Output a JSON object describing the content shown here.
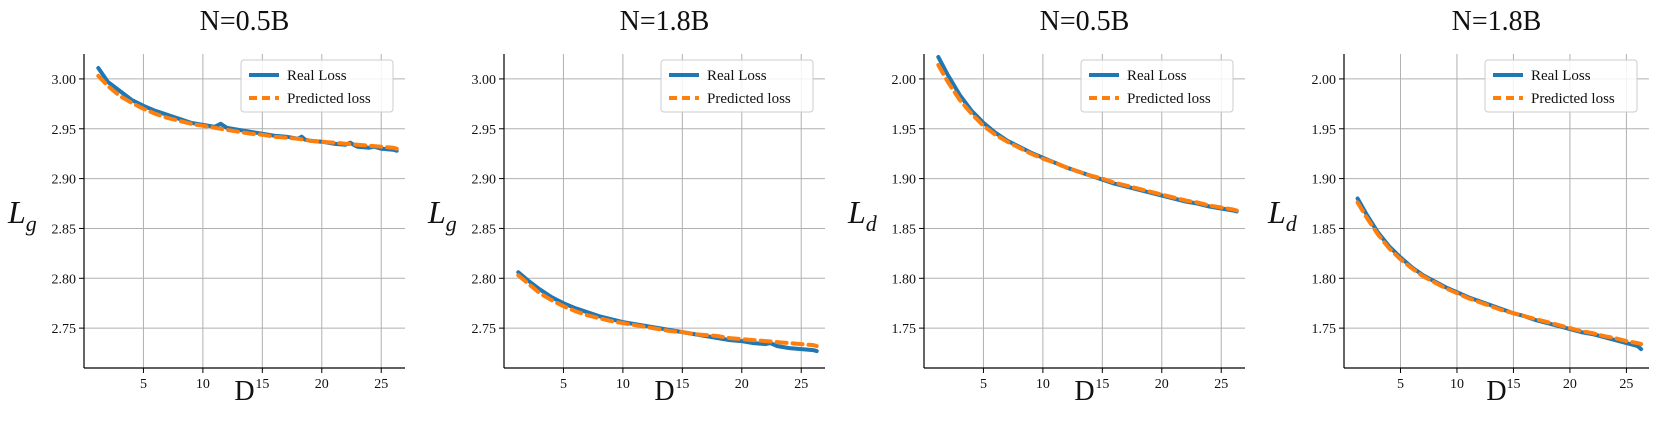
{
  "colors": {
    "real": "#1f77b4",
    "predicted": "#ff7f0e",
    "grid": "#b0b0b0",
    "axis": "#000000",
    "background": "#ffffff"
  },
  "legend": {
    "real_label": "Real Loss",
    "predicted_label": "Predicted loss",
    "placement": "upper-right"
  },
  "chart_data": [
    {
      "type": "line",
      "title": "N=0.5B",
      "xlabel": "D",
      "ylabel": "L_g",
      "ylabel_main": "L",
      "ylabel_sub": "g",
      "xlim": [
        0,
        27
      ],
      "ylim": [
        2.71,
        3.025
      ],
      "xticks": [
        5,
        10,
        15,
        20,
        25
      ],
      "yticks": [
        2.75,
        2.8,
        2.85,
        2.9,
        2.95,
        3.0
      ],
      "ytick_labels": [
        "2.75",
        "2.80",
        "2.85",
        "2.90",
        "2.95",
        "3.00"
      ],
      "grid": true,
      "series": [
        {
          "name": "Real Loss",
          "x": [
            1.2,
            2,
            3,
            4,
            5,
            6,
            7,
            8,
            9,
            10,
            11,
            11.5,
            12,
            13,
            14,
            15,
            16,
            17,
            18,
            18.3,
            18.6,
            19,
            20,
            21,
            22,
            22.4,
            22.8,
            23,
            24,
            24.4,
            25,
            26,
            26.3
          ],
          "y": [
            3.011,
            2.997,
            2.988,
            2.979,
            2.973,
            2.968,
            2.964,
            2.96,
            2.956,
            2.954,
            2.952,
            2.955,
            2.951,
            2.949,
            2.947,
            2.945,
            2.943,
            2.942,
            2.94,
            2.942,
            2.939,
            2.938,
            2.937,
            2.935,
            2.934,
            2.936,
            2.933,
            2.932,
            2.931,
            2.932,
            2.93,
            2.929,
            2.928
          ]
        },
        {
          "name": "Predicted loss",
          "x": [
            1.2,
            2,
            3,
            4,
            5,
            6,
            7,
            8,
            9,
            10,
            11,
            12,
            13,
            14,
            15,
            16,
            17,
            18,
            19,
            20,
            21,
            22,
            23,
            24,
            25,
            26,
            26.3
          ],
          "y": [
            3.003,
            2.993,
            2.983,
            2.976,
            2.97,
            2.965,
            2.961,
            2.958,
            2.955,
            2.953,
            2.951,
            2.949,
            2.947,
            2.945,
            2.944,
            2.942,
            2.941,
            2.94,
            2.938,
            2.937,
            2.936,
            2.935,
            2.934,
            2.933,
            2.932,
            2.931,
            2.93
          ]
        }
      ]
    },
    {
      "type": "line",
      "title": "N=1.8B",
      "xlabel": "D",
      "ylabel": "L_g",
      "ylabel_main": "L",
      "ylabel_sub": "g",
      "xlim": [
        0,
        27
      ],
      "ylim": [
        2.71,
        3.025
      ],
      "xticks": [
        5,
        10,
        15,
        20,
        25
      ],
      "yticks": [
        2.75,
        2.8,
        2.85,
        2.9,
        2.95,
        3.0
      ],
      "ytick_labels": [
        "2.75",
        "2.80",
        "2.85",
        "2.90",
        "2.95",
        "3.00"
      ],
      "grid": true,
      "series": [
        {
          "name": "Real Loss",
          "x": [
            1.2,
            2,
            3,
            4,
            5,
            6,
            7,
            8,
            9,
            10,
            11,
            12,
            13,
            14,
            15,
            16,
            17,
            18,
            19,
            20,
            21,
            22,
            22.4,
            23,
            24,
            25,
            26,
            26.3
          ],
          "y": [
            2.806,
            2.798,
            2.789,
            2.781,
            2.775,
            2.77,
            2.766,
            2.762,
            2.759,
            2.756,
            2.754,
            2.752,
            2.75,
            2.748,
            2.746,
            2.744,
            2.742,
            2.74,
            2.738,
            2.737,
            2.735,
            2.734,
            2.735,
            2.732,
            2.73,
            2.729,
            2.728,
            2.727
          ]
        },
        {
          "name": "Predicted loss",
          "x": [
            1.2,
            2,
            3,
            4,
            5,
            6,
            7,
            8,
            9,
            10,
            11,
            12,
            13,
            14,
            15,
            16,
            17,
            18,
            19,
            20,
            21,
            22,
            23,
            24,
            25,
            26,
            26.3
          ],
          "y": [
            2.803,
            2.795,
            2.785,
            2.778,
            2.772,
            2.767,
            2.763,
            2.76,
            2.757,
            2.755,
            2.753,
            2.751,
            2.749,
            2.747,
            2.746,
            2.744,
            2.743,
            2.742,
            2.74,
            2.739,
            2.738,
            2.737,
            2.736,
            2.735,
            2.734,
            2.733,
            2.732
          ]
        }
      ]
    },
    {
      "type": "line",
      "title": "N=0.5B",
      "xlabel": "D",
      "ylabel": "L_d",
      "ylabel_main": "L",
      "ylabel_sub": "d",
      "xlim": [
        0,
        27
      ],
      "ylim": [
        1.71,
        2.025
      ],
      "xticks": [
        5,
        10,
        15,
        20,
        25
      ],
      "yticks": [
        1.75,
        1.8,
        1.85,
        1.9,
        1.95,
        2.0
      ],
      "ytick_labels": [
        "1.75",
        "1.80",
        "1.85",
        "1.90",
        "1.95",
        "2.00"
      ],
      "grid": true,
      "series": [
        {
          "name": "Real Loss",
          "x": [
            1.2,
            2,
            3,
            4,
            5,
            6,
            7,
            8,
            9,
            10,
            11,
            12,
            13,
            14,
            15,
            16,
            17,
            18,
            19,
            20,
            21,
            22,
            23,
            24,
            25,
            26,
            26.3
          ],
          "y": [
            2.022,
            2.004,
            1.984,
            1.968,
            1.956,
            1.946,
            1.938,
            1.932,
            1.926,
            1.921,
            1.916,
            1.911,
            1.907,
            1.903,
            1.899,
            1.895,
            1.892,
            1.889,
            1.886,
            1.883,
            1.88,
            1.877,
            1.875,
            1.872,
            1.87,
            1.868,
            1.867
          ]
        },
        {
          "name": "Predicted loss",
          "x": [
            1.2,
            2,
            3,
            4,
            5,
            6,
            7,
            8,
            9,
            10,
            11,
            12,
            13,
            14,
            15,
            16,
            17,
            18,
            19,
            20,
            21,
            22,
            23,
            24,
            25,
            26,
            26.3
          ],
          "y": [
            2.014,
            1.997,
            1.979,
            1.965,
            1.953,
            1.944,
            1.937,
            1.931,
            1.925,
            1.92,
            1.916,
            1.911,
            1.907,
            1.903,
            1.9,
            1.896,
            1.893,
            1.89,
            1.887,
            1.884,
            1.881,
            1.878,
            1.876,
            1.873,
            1.871,
            1.869,
            1.868
          ]
        }
      ]
    },
    {
      "type": "line",
      "title": "N=1.8B",
      "xlabel": "D",
      "ylabel": "L_d",
      "ylabel_main": "L",
      "ylabel_sub": "d",
      "xlim": [
        0,
        27
      ],
      "ylim": [
        1.71,
        2.025
      ],
      "xticks": [
        5,
        10,
        15,
        20,
        25
      ],
      "yticks": [
        1.75,
        1.8,
        1.85,
        1.9,
        1.95,
        2.0
      ],
      "ytick_labels": [
        "1.75",
        "1.80",
        "1.85",
        "1.90",
        "1.95",
        "2.00"
      ],
      "grid": true,
      "series": [
        {
          "name": "Real Loss",
          "x": [
            1.2,
            2,
            3,
            4,
            5,
            6,
            7,
            8,
            9,
            10,
            11,
            12,
            13,
            14,
            15,
            16,
            17,
            18,
            19,
            20,
            21,
            22,
            23,
            24,
            25,
            26,
            26.3
          ],
          "y": [
            1.88,
            1.864,
            1.846,
            1.832,
            1.821,
            1.811,
            1.803,
            1.797,
            1.791,
            1.786,
            1.781,
            1.777,
            1.773,
            1.769,
            1.765,
            1.762,
            1.758,
            1.755,
            1.752,
            1.749,
            1.746,
            1.744,
            1.741,
            1.738,
            1.735,
            1.732,
            1.729
          ]
        },
        {
          "name": "Predicted loss",
          "x": [
            1.2,
            2,
            3,
            4,
            5,
            6,
            7,
            8,
            9,
            10,
            11,
            12,
            13,
            14,
            15,
            16,
            17,
            18,
            19,
            20,
            21,
            22,
            23,
            24,
            25,
            26,
            26.3
          ],
          "y": [
            1.876,
            1.861,
            1.844,
            1.83,
            1.819,
            1.81,
            1.802,
            1.796,
            1.79,
            1.785,
            1.78,
            1.776,
            1.772,
            1.768,
            1.765,
            1.762,
            1.759,
            1.756,
            1.753,
            1.75,
            1.747,
            1.745,
            1.742,
            1.74,
            1.737,
            1.735,
            1.734
          ]
        }
      ]
    }
  ]
}
